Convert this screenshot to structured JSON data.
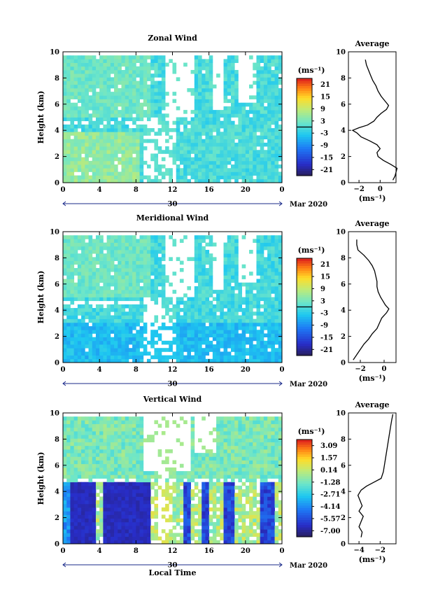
{
  "chart_data": [
    {
      "id": "zonal",
      "type": "heatmap",
      "title": "Zonal Wind",
      "ylabel": "Height (km)",
      "xlabel": "",
      "x_ticks": [
        "0",
        "4",
        "8",
        "12",
        "16",
        "20",
        "0"
      ],
      "y_ticks": [
        "0",
        "2",
        "4",
        "6",
        "8",
        "10"
      ],
      "xlim": [
        0,
        24
      ],
      "ylim": [
        0,
        10
      ],
      "date_label": "30",
      "month_label": "Mar 2020",
      "colorbar_unit": "(ms⁻¹)",
      "colorbar_ticks": [
        "21",
        "15",
        "9",
        "3",
        "-3",
        "-9",
        "-15",
        "-21"
      ],
      "colorbar_range": [
        -24,
        24
      ],
      "average": {
        "title": "Average",
        "xlabel": "(ms⁻¹)",
        "x_ticks": [
          "-2",
          "0"
        ],
        "xlim": [
          -3,
          1.5
        ],
        "y_ticks": [
          "0",
          "2",
          "4",
          "6",
          "8",
          "10"
        ],
        "profile": {
          "height": [
            0.2,
            0.5,
            0.8,
            1.1,
            1.4,
            1.7,
            2.0,
            2.3,
            2.6,
            2.9,
            3.2,
            3.5,
            3.8,
            4.0,
            4.2,
            4.4,
            4.7,
            5.0,
            5.3,
            5.6,
            5.9,
            6.2,
            6.6,
            7.0,
            7.4,
            7.8,
            8.2,
            8.6,
            9.0,
            9.4
          ],
          "value": [
            1.2,
            1.4,
            1.5,
            1.6,
            1.0,
            0.3,
            -0.2,
            -0.3,
            0.0,
            -0.3,
            -1.0,
            -1.8,
            -2.2,
            -2.6,
            -2.0,
            -1.2,
            -0.6,
            -0.3,
            0.1,
            0.6,
            0.8,
            0.5,
            0.1,
            -0.2,
            -0.4,
            -0.7,
            -0.9,
            -1.1,
            -1.3,
            -1.4
          ]
        }
      }
    },
    {
      "id": "meridional",
      "type": "heatmap",
      "title": "Meridional Wind",
      "ylabel": "Height (km)",
      "xlabel": "",
      "x_ticks": [
        "0",
        "4",
        "8",
        "12",
        "16",
        "20",
        "0"
      ],
      "y_ticks": [
        "0",
        "2",
        "4",
        "6",
        "8",
        "10"
      ],
      "xlim": [
        0,
        24
      ],
      "ylim": [
        0,
        10
      ],
      "date_label": "30",
      "month_label": "Mar 2020",
      "colorbar_unit": "(ms⁻¹)",
      "colorbar_ticks": [
        "21",
        "15",
        "9",
        "3",
        "-3",
        "-9",
        "-15",
        "-21"
      ],
      "colorbar_range": [
        -24,
        24
      ],
      "average": {
        "title": "Average",
        "xlabel": "(ms⁻¹)",
        "x_ticks": [
          "-2",
          "0"
        ],
        "xlim": [
          -3,
          1
        ],
        "y_ticks": [
          "0",
          "2",
          "4",
          "6",
          "8",
          "10"
        ],
        "profile": {
          "height": [
            0.2,
            0.6,
            1.0,
            1.4,
            1.8,
            2.2,
            2.6,
            3.0,
            3.4,
            3.8,
            4.1,
            4.4,
            4.7,
            5.0,
            5.4,
            5.8,
            6.2,
            6.6,
            7.0,
            7.4,
            7.8,
            8.2,
            8.6,
            9.0,
            9.4
          ],
          "value": [
            -2.6,
            -2.3,
            -2.0,
            -1.7,
            -1.3,
            -1.0,
            -0.6,
            -0.4,
            -0.2,
            0.2,
            0.4,
            0.1,
            -0.1,
            -0.3,
            -0.5,
            -0.6,
            -0.6,
            -0.7,
            -0.8,
            -1.0,
            -1.3,
            -1.7,
            -2.2,
            -2.3,
            -2.3
          ]
        }
      }
    },
    {
      "id": "vertical",
      "type": "heatmap",
      "title": "Vertical Wind",
      "ylabel": "Height (km)",
      "xlabel": "Local Time",
      "x_ticks": [
        "0",
        "4",
        "8",
        "12",
        "16",
        "20",
        "0"
      ],
      "y_ticks": [
        "0",
        "2",
        "4",
        "6",
        "8",
        "10"
      ],
      "xlim": [
        0,
        24
      ],
      "ylim": [
        0,
        10
      ],
      "date_label": "30",
      "month_label": "Mar 2020",
      "colorbar_unit": "(ms⁻¹)",
      "colorbar_ticks": [
        "3.09",
        "1.57",
        "0.14",
        "-1.28",
        "-2.71",
        "-4.14",
        "-5.57",
        "-7.00"
      ],
      "colorbar_range": [
        -7.7,
        3.8
      ],
      "average": {
        "title": "Average",
        "xlabel": "(ms⁻¹)",
        "x_ticks": [
          "-4",
          "-2"
        ],
        "xlim": [
          -5,
          -0.5
        ],
        "y_ticks": [
          "0",
          "2",
          "4",
          "6",
          "8",
          "10"
        ],
        "profile": {
          "height": [
            0.5,
            0.9,
            1.3,
            1.7,
            2.1,
            2.5,
            2.9,
            3.3,
            3.7,
            4.1,
            4.4,
            4.7,
            5.0,
            5.5,
            6.0,
            6.5,
            7.0,
            7.5,
            8.0,
            8.5,
            9.0,
            9.5,
            9.9
          ],
          "value": [
            -3.8,
            -3.7,
            -4.0,
            -3.8,
            -3.6,
            -4.0,
            -3.7,
            -3.9,
            -4.1,
            -3.8,
            -3.3,
            -2.6,
            -1.9,
            -1.7,
            -1.6,
            -1.5,
            -1.4,
            -1.3,
            -1.2,
            -1.1,
            -1.0,
            -0.9,
            -0.8
          ]
        }
      }
    }
  ]
}
